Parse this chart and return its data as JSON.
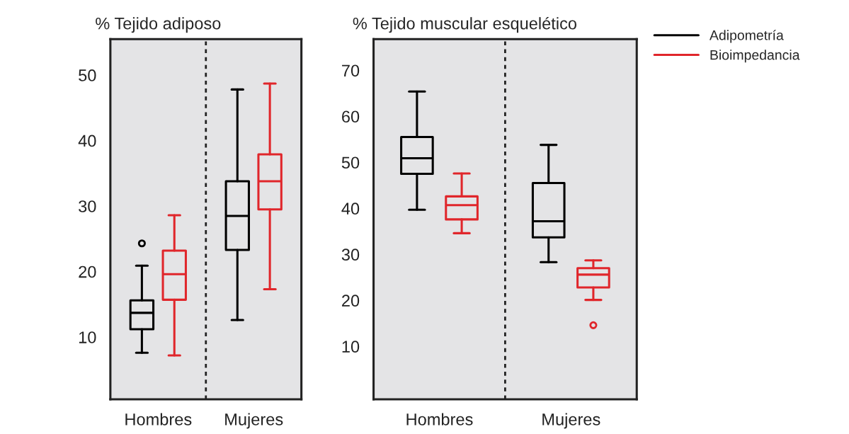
{
  "chart_data": [
    {
      "type": "box",
      "title": "% Tejido adiposo",
      "categories": [
        "Hombres",
        "Mujeres"
      ],
      "ylim": [
        0.5,
        55.5
      ],
      "yticks": [
        10,
        20,
        30,
        40,
        50
      ],
      "grid": false,
      "series": [
        {
          "color": "#000000",
          "boxes": [
            {
              "low": 7.6,
              "q1": 11.2,
              "median": 13.7,
              "q3": 15.6,
              "high": 20.9,
              "outliers": [
                24.3
              ]
            },
            {
              "low": 12.6,
              "q1": 23.3,
              "median": 28.5,
              "q3": 33.8,
              "high": 47.8
            }
          ]
        },
        {
          "color": "#e0262b",
          "boxes": [
            {
              "low": 7.2,
              "q1": 15.7,
              "median": 19.6,
              "q3": 23.2,
              "high": 28.6
            },
            {
              "low": 17.3,
              "q1": 29.5,
              "median": 33.8,
              "q3": 37.9,
              "high": 48.7
            }
          ]
        }
      ]
    },
    {
      "type": "box",
      "title": "% Tejido muscular esquelético",
      "categories": [
        "Hombres",
        "Mujeres"
      ],
      "ylim": [
        -1.5,
        76.8
      ],
      "yticks": [
        10,
        20,
        30,
        40,
        50,
        60,
        70
      ],
      "grid": false,
      "legend": "right",
      "series": [
        {
          "name": "Adipometría",
          "color": "#000000",
          "boxes": [
            {
              "low": 39.7,
              "q1": 47.5,
              "median": 50.9,
              "q3": 55.5,
              "high": 65.4
            },
            {
              "low": 28.3,
              "q1": 33.7,
              "median": 37.2,
              "q3": 45.5,
              "high": 53.8
            }
          ]
        },
        {
          "name": "Bioimpedancia",
          "color": "#e0262b",
          "boxes": [
            {
              "low": 34.6,
              "q1": 37.6,
              "median": 40.7,
              "q3": 42.6,
              "high": 47.6
            },
            {
              "low": 20.1,
              "q1": 22.8,
              "median": 25.6,
              "q3": 27.0,
              "high": 28.7,
              "outliers": [
                14.6
              ]
            }
          ]
        }
      ]
    }
  ]
}
